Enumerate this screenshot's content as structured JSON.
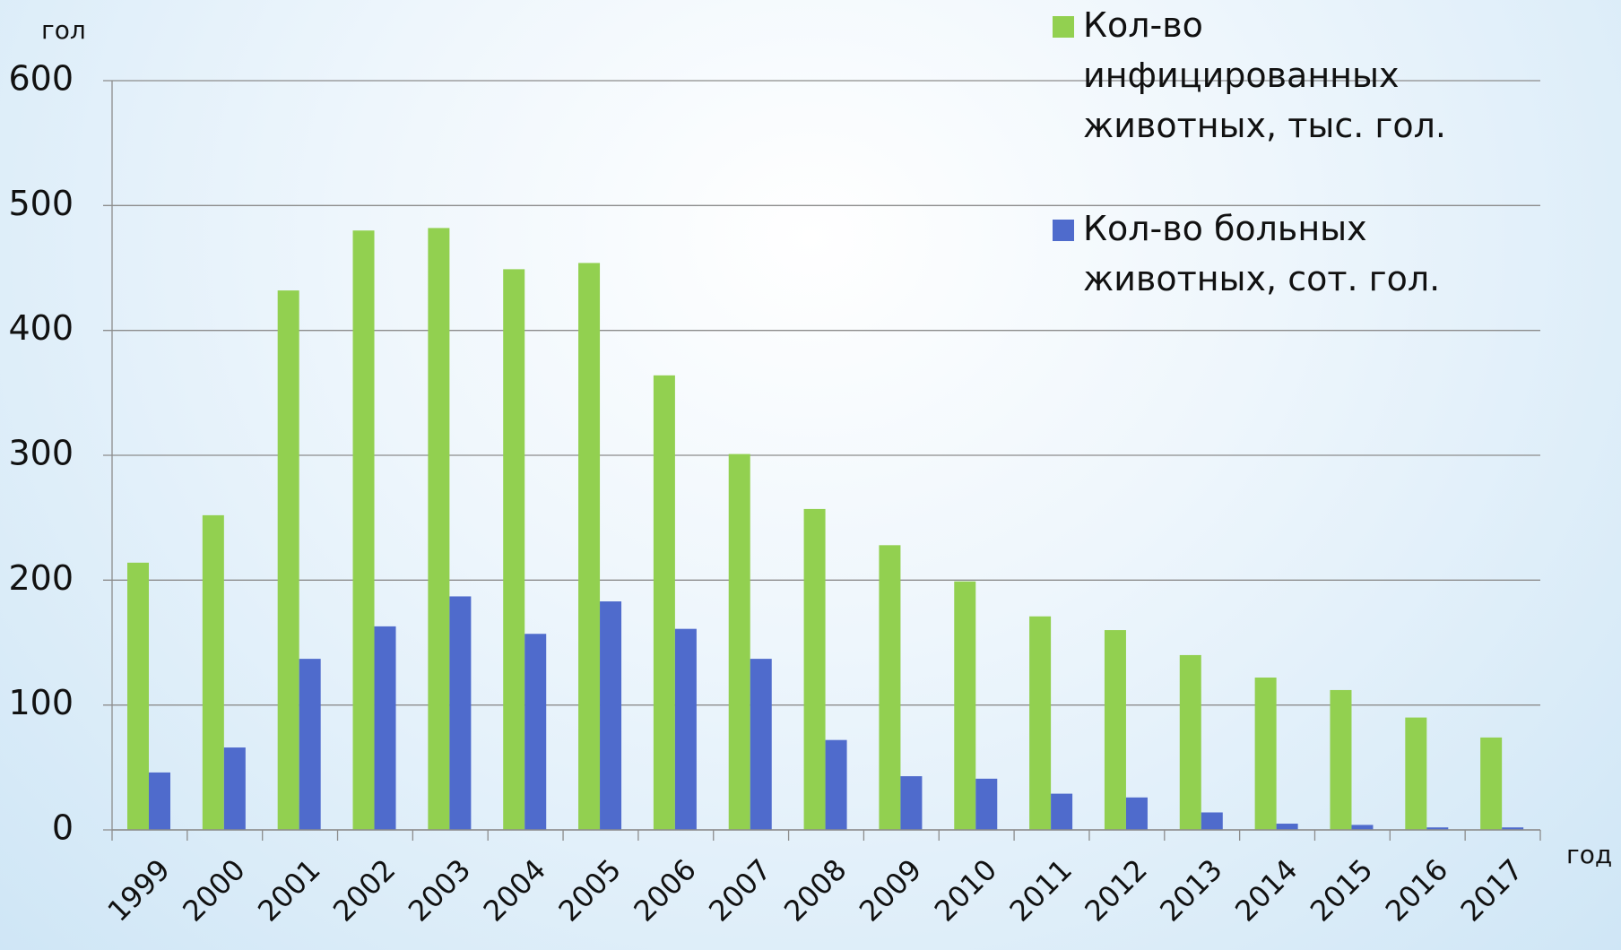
{
  "chart_data": {
    "type": "bar",
    "y_label": "гол",
    "x_label": "год",
    "categories": [
      "1999",
      "2000",
      "2001",
      "2002",
      "2003",
      "2004",
      "2005",
      "2006",
      "2007",
      "2008",
      "2009",
      "2010",
      "2011",
      "2012",
      "2013",
      "2014",
      "2015",
      "2016",
      "2017"
    ],
    "series": [
      {
        "name": "Кол-во инфицированных животных, тыс. гол.",
        "color": "#92d050",
        "values": [
          214,
          252,
          432,
          480,
          482,
          449,
          454,
          364,
          301,
          257,
          228,
          199,
          171,
          160,
          140,
          122,
          112,
          90,
          74
        ]
      },
      {
        "name": "Кол-во больных животных, сот. гол.",
        "color": "#4f6bcc",
        "values": [
          46,
          66,
          137,
          163,
          187,
          157,
          183,
          161,
          137,
          72,
          43,
          41,
          29,
          26,
          14,
          5,
          4,
          2,
          2
        ]
      }
    ],
    "ylim": [
      0,
      600
    ],
    "yticks": [
      0,
      100,
      200,
      300,
      400,
      500,
      600
    ],
    "grid": true
  }
}
